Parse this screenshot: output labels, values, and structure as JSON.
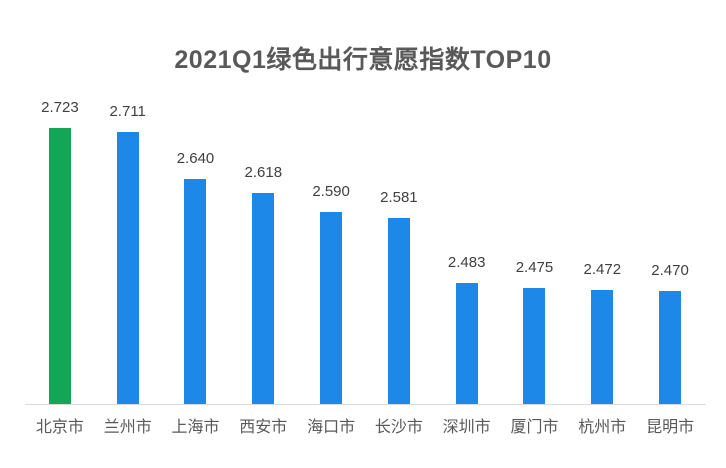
{
  "title": "2021Q1绿色出行意愿指数TOP10",
  "colors": {
    "background": "#FFFFFF",
    "bar": "#1E88E8",
    "highlight": "#12A656",
    "title_text": "#595959",
    "value_text": "#404040",
    "category_text": "#595959",
    "axis_line": "#D9D9D9"
  },
  "chart_data": {
    "type": "bar",
    "title": "2021Q1绿色出行意愿指数TOP10",
    "categories": [
      "北京市",
      "兰州市",
      "上海市",
      "西安市",
      "海口市",
      "长沙市",
      "深圳市",
      "厦门市",
      "杭州市",
      "昆明市"
    ],
    "values": [
      2.723,
      2.711,
      2.64,
      2.618,
      2.59,
      2.581,
      2.483,
      2.475,
      2.472,
      2.47
    ],
    "value_labels": [
      "2.723",
      "2.711",
      "2.640",
      "2.618",
      "2.590",
      "2.581",
      "2.483",
      "2.475",
      "2.472",
      "2.470"
    ],
    "highlight_index": 0,
    "xlabel": "",
    "ylabel": "",
    "ylim": [
      2.3,
      2.76
    ],
    "grid": false,
    "legend": false,
    "data_labels": "above-bars",
    "axes_shown": "x-baseline-only"
  }
}
